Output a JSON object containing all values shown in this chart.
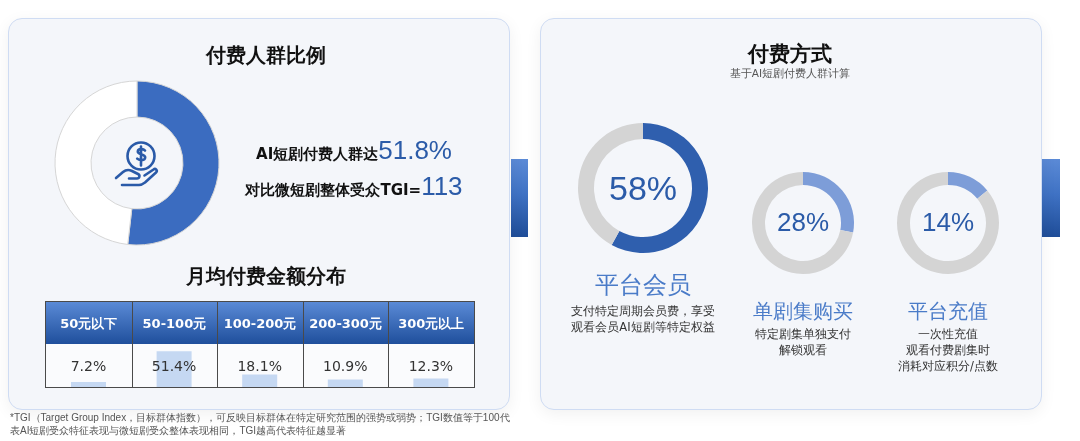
{
  "chart_data": [
    {
      "type": "donut",
      "title": "付费人群比例",
      "categories": [
        "AI短剧付费人群达",
        null
      ],
      "values": [
        51.8,
        48.2
      ],
      "colors": [
        "#3b6cc0",
        "#ffffff"
      ],
      "value_labels": [
        "51.8%",
        null
      ],
      "annotations": [
        "对比微短剧整体受众TGI=113"
      ]
    },
    {
      "type": "bar",
      "title": "月均付费金额分布",
      "categories": [
        "50元以下",
        "50-100元",
        "100-200元",
        "200-300元",
        "300元以上"
      ],
      "values": [
        7.2,
        51.4,
        18.1,
        10.9,
        12.3
      ],
      "color": "#c5d8f2",
      "value_labels": [
        "7.2%",
        "51.4%",
        "18.1%",
        "10.9%",
        "12.3%"
      ],
      "annotations": [
        "*TGI（Target Group Index，目标群体指数），可反映目标群体在特定研究范围的强势或弱势；TGI数值等于100代表AI短剧受众特征表现与微短剧受众整体表现相同，TGI越高代表特征越显著"
      ]
    },
    {
      "type": "donut",
      "title": "付费方式",
      "subtitle": "基于AI短剧付费人群计算",
      "categories": [
        "平台会员",
        null
      ],
      "values": [
        58,
        42
      ],
      "colors": [
        "#2f5fae",
        "#d4d4d4"
      ],
      "value_labels": [
        "58%",
        null
      ],
      "annotations": [
        "支付特定周期会员费，享受观看会员AI短剧等特定权益"
      ]
    },
    {
      "type": "donut",
      "title": "单剧集购买",
      "categories": [
        null,
        null
      ],
      "values": [
        28,
        72
      ],
      "colors": [
        "#7d9dd8",
        "#d4d4d4"
      ],
      "value_labels": [
        "28%",
        null
      ],
      "annotations": [
        "特定剧集单独支付解锁观看"
      ]
    },
    {
      "type": "donut",
      "title": "平台充值",
      "categories": [
        null,
        null
      ],
      "values": [
        14,
        86
      ],
      "colors": [
        "#7d9dd8",
        "#d4d4d4"
      ],
      "value_labels": [
        "14%",
        null
      ],
      "annotations": [
        "一次性充值",
        "观看付费剧集时",
        "消耗对应积分/点数"
      ]
    }
  ]
}
